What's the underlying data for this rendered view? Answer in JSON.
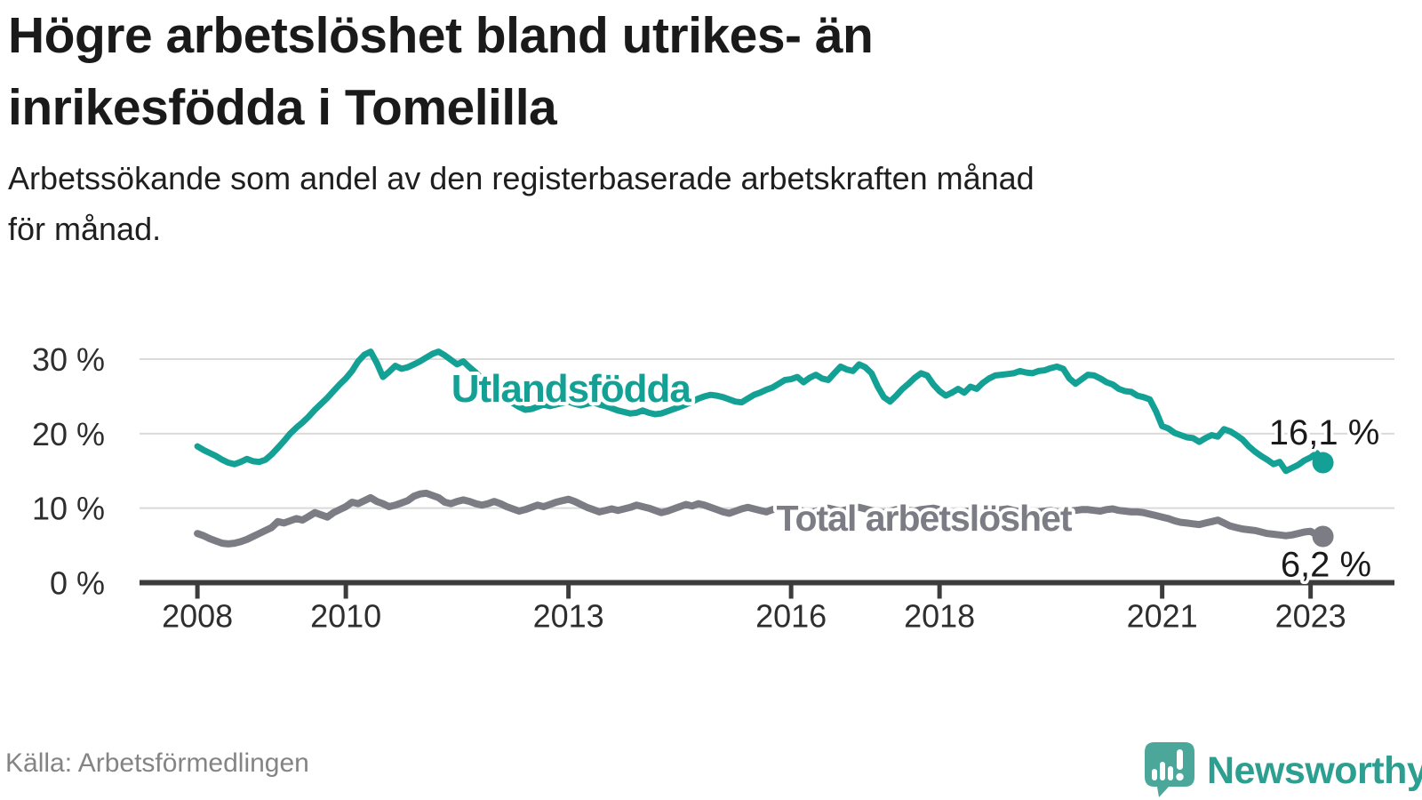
{
  "header": {
    "title": "Högre arbetslöshet bland utrikes- än\ninrikesfödda i Tomelilla",
    "subtitle": "Arbetssökande som andel av den registerbaserade arbetskraften månad\nför månad."
  },
  "footer": {
    "source": "Källa: Arbetsförmedlingen",
    "logo_text": "Newsworthy"
  },
  "colors": {
    "accent_teal": "#14a195",
    "series_gray": "#7c7c84",
    "logo_teal": "#4ba79a",
    "logo_text_teal": "#2d9f91",
    "grid": "#dadada",
    "axis": "#3c3c3c",
    "tick_label": "#2e2e2e",
    "value_label": "#1a1a1a"
  },
  "chart_data": {
    "type": "line",
    "title": "Högre arbetslöshet bland utrikes- än inrikesfödda i Tomelilla",
    "xlabel": "",
    "ylabel": "Arbetssökande som andel av den registerbaserade arbetskraften",
    "grid": true,
    "legend_position": "inline-labels",
    "x_start_year": 2008,
    "x_step_months": 1,
    "xlim": [
      2007.22,
      2024.13
    ],
    "ylim": [
      0,
      32
    ],
    "x_ticks": [
      {
        "value": 2008,
        "label": "2008"
      },
      {
        "value": 2010,
        "label": "2010"
      },
      {
        "value": 2013,
        "label": "2013"
      },
      {
        "value": 2016,
        "label": "2016"
      },
      {
        "value": 2018,
        "label": "2018"
      },
      {
        "value": 2021,
        "label": "2021"
      },
      {
        "value": 2023,
        "label": "2023"
      }
    ],
    "y_ticks": [
      {
        "value": 0,
        "label": "0 %"
      },
      {
        "value": 10,
        "label": "10 %"
      },
      {
        "value": 20,
        "label": "20 %"
      },
      {
        "value": 30,
        "label": "30 %"
      }
    ],
    "series": [
      {
        "name": "Total arbetslöshet",
        "color": "#7c7c84",
        "line_width": 8,
        "end_dot_radius": 12,
        "label": {
          "text": "Total arbetslöshet",
          "x": 2015.8,
          "y_pct": 6.95,
          "font_size": 41
        },
        "end_label": {
          "text": "6,2 %",
          "x": 2023.82,
          "y_pct": 0.85,
          "anchor": "end"
        },
        "last_value": 6.2,
        "values": [
          6.6,
          6.3,
          5.9,
          5.6,
          5.3,
          5.2,
          5.3,
          5.5,
          5.8,
          6.2,
          6.6,
          7.0,
          7.4,
          8.2,
          8.0,
          8.3,
          8.6,
          8.4,
          8.9,
          9.4,
          9.1,
          8.8,
          9.4,
          9.8,
          10.2,
          10.8,
          10.6,
          11.0,
          11.4,
          10.9,
          10.6,
          10.2,
          10.4,
          10.7,
          11.0,
          11.6,
          11.9,
          12.0,
          11.7,
          11.4,
          10.8,
          10.6,
          10.9,
          11.1,
          10.9,
          10.6,
          10.4,
          10.6,
          10.9,
          10.6,
          10.2,
          9.9,
          9.6,
          9.8,
          10.1,
          10.4,
          10.2,
          10.5,
          10.8,
          11.0,
          11.2,
          10.9,
          10.5,
          10.1,
          9.8,
          9.5,
          9.7,
          9.9,
          9.7,
          9.9,
          10.1,
          10.4,
          10.2,
          10.0,
          9.7,
          9.4,
          9.6,
          9.9,
          10.2,
          10.5,
          10.3,
          10.6,
          10.4,
          10.1,
          9.8,
          9.5,
          9.3,
          9.6,
          9.9,
          10.1,
          9.9,
          9.7,
          9.5,
          9.8,
          10.0,
          10.2,
          10.0,
          9.8,
          9.6,
          9.4,
          9.6,
          9.8,
          10.0,
          9.8,
          9.6,
          9.8,
          10.0,
          10.1,
          9.9,
          9.7,
          9.5,
          9.4,
          9.6,
          9.8,
          9.9,
          9.7,
          9.6,
          9.8,
          9.9,
          10.0,
          9.8,
          9.6,
          9.4,
          9.3,
          9.5,
          9.7,
          9.8,
          9.6,
          9.5,
          9.7,
          9.8,
          9.9,
          9.7,
          9.5,
          9.4,
          9.3,
          9.5,
          9.6,
          9.7,
          9.5,
          9.4,
          9.6,
          9.7,
          9.8,
          9.8,
          9.7,
          9.6,
          9.8,
          9.9,
          9.7,
          9.6,
          9.5,
          9.5,
          9.4,
          9.2,
          9.0,
          8.8,
          8.6,
          8.3,
          8.1,
          8.0,
          7.9,
          7.8,
          8.0,
          8.2,
          8.4,
          8.0,
          7.6,
          7.4,
          7.2,
          7.1,
          7.0,
          6.8,
          6.6,
          6.5,
          6.4,
          6.3,
          6.4,
          6.6,
          6.8,
          6.9,
          6.4,
          6.2
        ]
      },
      {
        "name": "Utlandsfödda",
        "color": "#14a195",
        "line_width": 7,
        "end_dot_radius": 12,
        "label": {
          "text": "Utlandsfödda",
          "x": 2011.42,
          "y_pct": 24.3,
          "font_size": 44
        },
        "end_label": {
          "text": "16,1 %",
          "x": 2023.93,
          "y_pct": 18.55,
          "anchor": "end"
        },
        "last_value": 16.1,
        "values": [
          18.3,
          17.8,
          17.4,
          17.0,
          16.5,
          16.1,
          15.9,
          16.2,
          16.6,
          16.3,
          16.2,
          16.5,
          17.2,
          18.1,
          19.0,
          20.0,
          20.8,
          21.5,
          22.3,
          23.2,
          24.0,
          24.8,
          25.7,
          26.6,
          27.4,
          28.4,
          29.7,
          30.6,
          31.0,
          29.5,
          27.6,
          28.3,
          29.1,
          28.7,
          28.9,
          29.3,
          29.7,
          30.2,
          30.7,
          31.0,
          30.5,
          29.9,
          29.3,
          29.7,
          28.9,
          28.2,
          27.4,
          26.7,
          26.1,
          25.4,
          24.7,
          24.1,
          23.6,
          23.2,
          23.3,
          23.6,
          23.9,
          23.7,
          23.9,
          24.1,
          24.3,
          24.0,
          23.8,
          24.0,
          24.2,
          23.9,
          23.7,
          23.4,
          23.1,
          22.9,
          22.7,
          22.8,
          23.1,
          22.8,
          22.6,
          22.7,
          23.0,
          23.3,
          23.6,
          23.9,
          24.3,
          24.7,
          25.0,
          25.2,
          25.1,
          24.9,
          24.6,
          24.3,
          24.2,
          24.7,
          25.2,
          25.5,
          25.9,
          26.2,
          26.7,
          27.2,
          27.3,
          27.6,
          26.9,
          27.5,
          27.9,
          27.4,
          27.2,
          28.1,
          29.0,
          28.6,
          28.4,
          29.3,
          28.9,
          28.1,
          26.3,
          24.9,
          24.3,
          25.1,
          26.0,
          26.7,
          27.5,
          28.1,
          27.8,
          26.6,
          25.7,
          25.1,
          25.5,
          26.0,
          25.5,
          26.3,
          26.0,
          26.8,
          27.4,
          27.8,
          27.9,
          28.0,
          28.1,
          28.4,
          28.2,
          28.1,
          28.4,
          28.5,
          28.8,
          29.0,
          28.7,
          27.4,
          26.7,
          27.3,
          27.9,
          27.8,
          27.4,
          26.9,
          26.6,
          26.0,
          25.7,
          25.6,
          25.1,
          24.9,
          24.6,
          23.0,
          21.0,
          20.7,
          20.1,
          19.8,
          19.5,
          19.4,
          18.9,
          19.4,
          19.8,
          19.6,
          20.6,
          20.3,
          19.8,
          19.2,
          18.3,
          17.6,
          17.0,
          16.5,
          15.9,
          16.2,
          15.0,
          15.4,
          15.8,
          16.4,
          16.8,
          17.4,
          16.1
        ]
      }
    ]
  }
}
